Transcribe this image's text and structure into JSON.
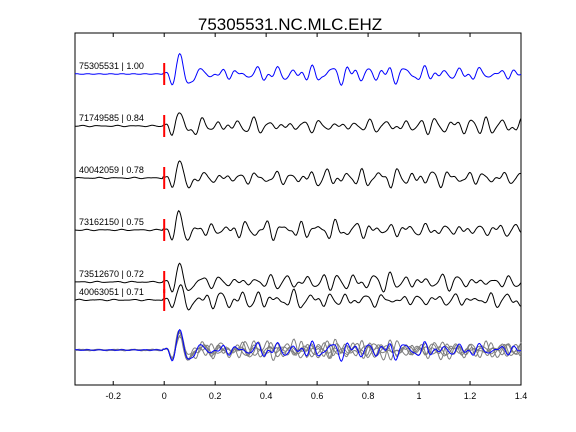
{
  "chart_data": {
    "type": "line",
    "title": "75305531.NC.MLC.EHZ",
    "xlabel": "",
    "ylabel": "",
    "xlim": [
      -0.35,
      1.4
    ],
    "x_ticks": [
      -0.2,
      0,
      0.2,
      0.4,
      0.6,
      0.8,
      1,
      1.2,
      1.4
    ],
    "x_tick_labels": [
      "-0.2",
      "0",
      "0.2",
      "0.4",
      "0.6",
      "0.8",
      "1",
      "1.2",
      "1.4"
    ],
    "pick_time": 0,
    "traces": [
      {
        "label": "75305531 | 1.00",
        "event_id": "75305531",
        "correlation": 1.0,
        "color": "#0000ff",
        "seed": 3
      },
      {
        "label": "71749585 | 0.84",
        "event_id": "71749585",
        "correlation": 0.84,
        "color": "#000000",
        "seed": 11
      },
      {
        "label": "40042059 | 0.78",
        "event_id": "40042059",
        "correlation": 0.78,
        "color": "#000000",
        "seed": 23
      },
      {
        "label": "73162150 | 0.75",
        "event_id": "73162150",
        "correlation": 0.75,
        "color": "#000000",
        "seed": 37
      },
      {
        "label": "73512670 | 0.72",
        "event_id": "73512670",
        "correlation": 0.72,
        "color": "#000000",
        "seed": 41
      },
      {
        "label": "40063051 | 0.71",
        "event_id": "40063051",
        "correlation": 0.71,
        "color": "#000000",
        "seed": 53
      }
    ],
    "stack": {
      "reference_color": "#0000ff",
      "overlay_color": "#7f7f7f"
    },
    "pick_color": "#ff0000"
  }
}
